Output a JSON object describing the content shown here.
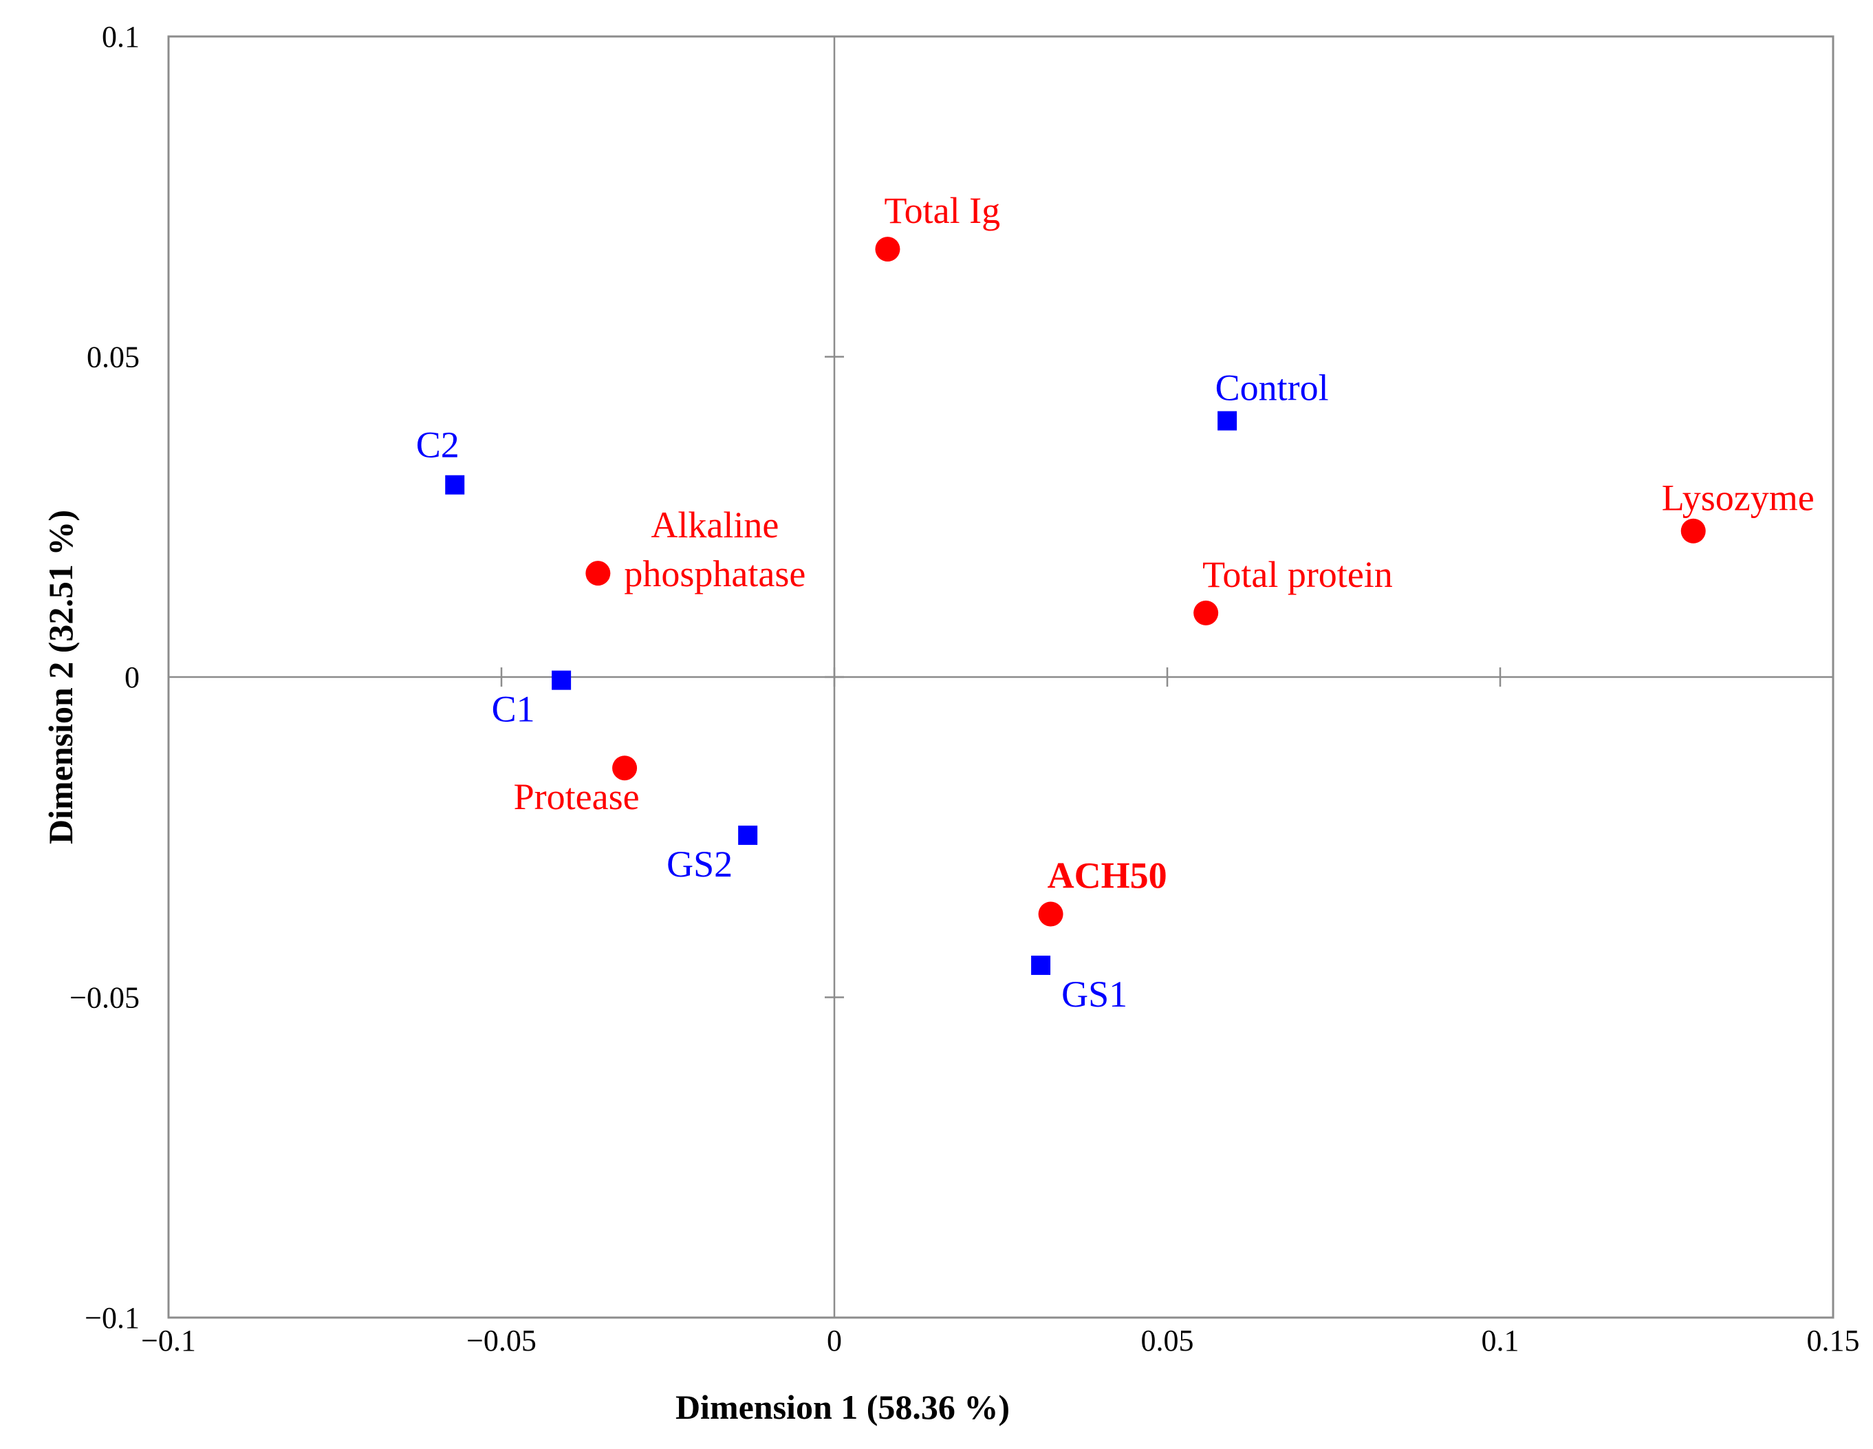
{
  "chart_data": {
    "type": "scatter",
    "title": "",
    "xlabel": "Dimension 1 (58.36 %)",
    "ylabel": "Dimension 2 (32.51 %)",
    "xlim": [
      -0.1,
      0.15
    ],
    "ylim": [
      -0.1,
      0.1
    ],
    "grid": false,
    "x_ticks": [
      {
        "value": -0.1,
        "label": "−0.1"
      },
      {
        "value": -0.05,
        "label": "−0.05"
      },
      {
        "value": 0,
        "label": "0"
      },
      {
        "value": 0.05,
        "label": "0.05"
      },
      {
        "value": 0.1,
        "label": "0.1"
      },
      {
        "value": 0.15,
        "label": "0.15"
      }
    ],
    "y_ticks": [
      {
        "value": 0.1,
        "label": "0.1"
      },
      {
        "value": 0.05,
        "label": "0.05"
      },
      {
        "value": 0,
        "label": "0"
      },
      {
        "value": -0.05,
        "label": "−0.05"
      },
      {
        "value": -0.1,
        "label": "−0.1"
      }
    ],
    "series": [
      {
        "name": "Treatments",
        "marker": "square",
        "color": "#0000ff",
        "points": [
          {
            "label": "Control",
            "x": 0.059,
            "y": 0.04,
            "label_pos": "above"
          },
          {
            "label": "C2",
            "x": -0.057,
            "y": 0.03,
            "label_pos": "above-left"
          },
          {
            "label": "C1",
            "x": -0.041,
            "y": -0.0005,
            "label_pos": "below-left"
          },
          {
            "label": "GS2",
            "x": -0.013,
            "y": -0.0247,
            "label_pos": "below-left"
          },
          {
            "label": "GS1",
            "x": 0.031,
            "y": -0.045,
            "label_pos": "below-right"
          }
        ]
      },
      {
        "name": "Immune parameters",
        "marker": "circle",
        "color": "#ff0000",
        "points": [
          {
            "label": "Total Ig",
            "x": 0.008,
            "y": 0.0668,
            "label_pos": "above-right"
          },
          {
            "label": "Lysozyme",
            "x": 0.129,
            "y": 0.0228,
            "label_pos": "above"
          },
          {
            "label": "Total protein",
            "x": 0.0558,
            "y": 0.01,
            "label_pos": "above-right"
          },
          {
            "label": "Alkaline phosphatase",
            "x": -0.0355,
            "y": 0.0162,
            "label_pos": "right-twoline"
          },
          {
            "label": "Protease",
            "x": -0.0315,
            "y": -0.0142,
            "label_pos": "below-left"
          },
          {
            "label": "ACH50",
            "x": 0.0325,
            "y": -0.037,
            "label_pos": "above-right",
            "bold": true
          }
        ]
      }
    ]
  }
}
